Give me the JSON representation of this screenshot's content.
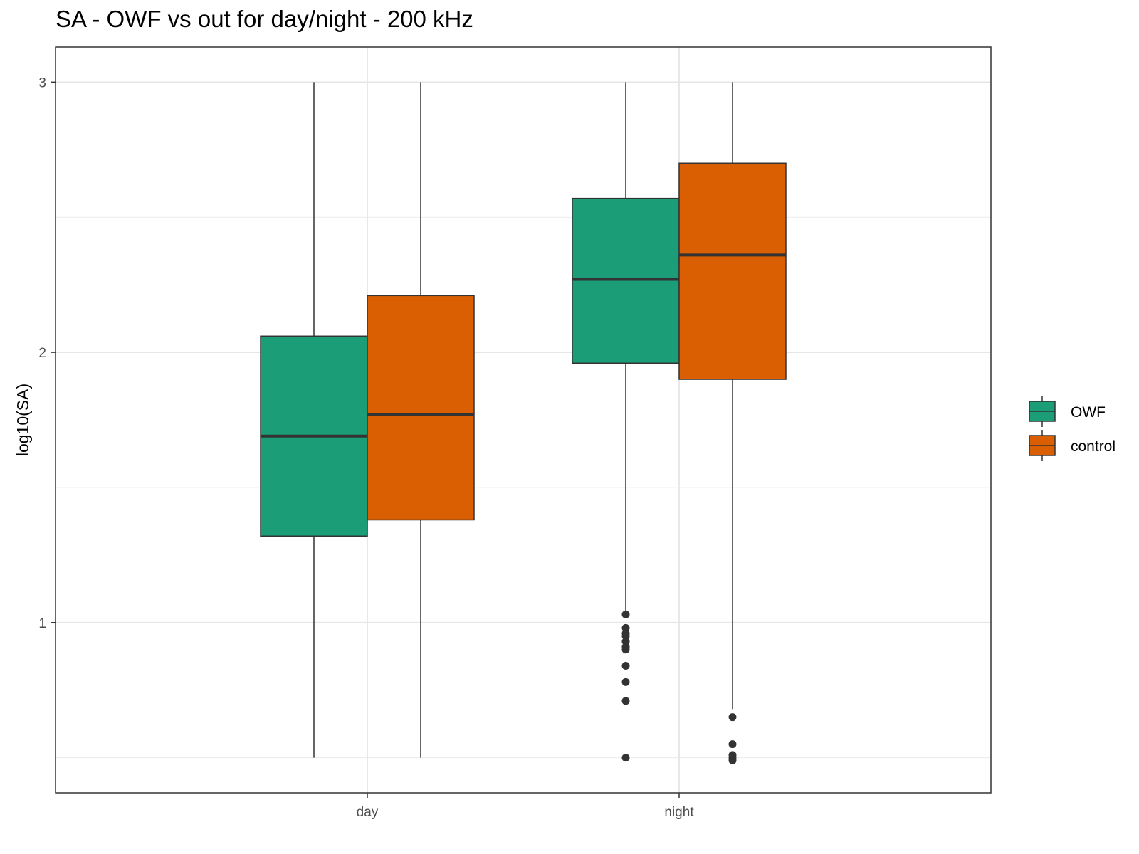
{
  "chart_data": {
    "type": "boxplot",
    "title": "SA - OWF vs out for day/night - 200 kHz",
    "xlabel": "",
    "ylabel": "log10(SA)",
    "categories": [
      "day",
      "night"
    ],
    "ylim": [
      0.37,
      3.13
    ],
    "yticks": [
      1,
      2,
      3
    ],
    "grid": true,
    "legend_position": "right",
    "series": [
      {
        "name": "OWF",
        "color": "#1B9E77",
        "boxes": [
          {
            "category": "day",
            "whisker_low": 0.5,
            "q1": 1.32,
            "median": 1.69,
            "q3": 2.06,
            "whisker_high": 3.0,
            "outliers": []
          },
          {
            "category": "night",
            "whisker_low": 1.04,
            "q1": 1.96,
            "median": 2.27,
            "q3": 2.57,
            "whisker_high": 3.0,
            "outliers": [
              1.03,
              0.98,
              0.96,
              0.95,
              0.93,
              0.91,
              0.9,
              0.84,
              0.78,
              0.71,
              0.5
            ]
          }
        ]
      },
      {
        "name": "control",
        "color": "#D95F02",
        "boxes": [
          {
            "category": "day",
            "whisker_low": 0.5,
            "q1": 1.38,
            "median": 1.77,
            "q3": 2.21,
            "whisker_high": 3.0,
            "outliers": []
          },
          {
            "category": "night",
            "whisker_low": 0.68,
            "q1": 1.9,
            "median": 2.36,
            "q3": 2.7,
            "whisker_high": 3.0,
            "outliers": [
              0.65,
              0.55,
              0.51,
              0.5,
              0.49
            ]
          }
        ]
      }
    ]
  }
}
